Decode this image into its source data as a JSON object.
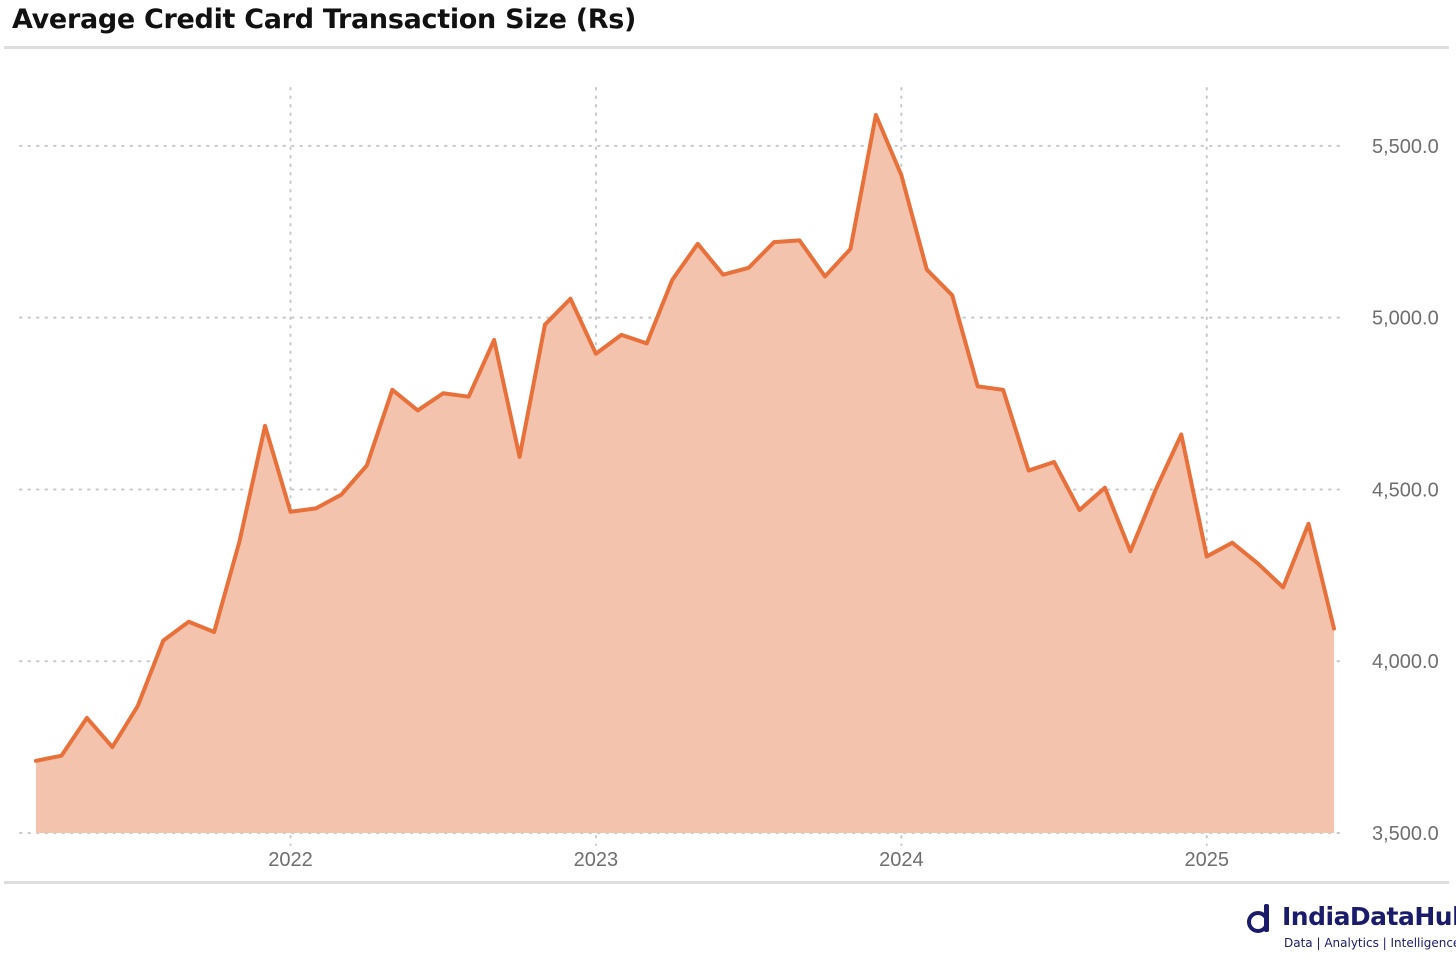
{
  "title": "Average Credit Card Transaction Size (Rs)",
  "colors": {
    "line": "#E8703A",
    "fill": "#F4C3AD",
    "grid": "#c8c8c8",
    "tick_text": "#6e6e6e",
    "brand": "#1b1b6b"
  },
  "brand": {
    "name": "IndiaDataHub",
    "tagline": "Data | Analytics | Intelligence",
    "logo_icon": "data-hub-logo-icon"
  },
  "chart_data": {
    "type": "area",
    "title": "Average Credit Card Transaction Size (Rs)",
    "xlabel": "",
    "ylabel": "",
    "x_start": "2021-03",
    "x_step": "month",
    "xlim": [
      "2021-03",
      "2025-04"
    ],
    "ylim": [
      3500,
      5750
    ],
    "y_axis_position": "right",
    "grid": true,
    "legend": "none",
    "x_ticks": [
      {
        "label": "2022",
        "at": "2022-01"
      },
      {
        "label": "2023",
        "at": "2023-01"
      },
      {
        "label": "2024",
        "at": "2024-01"
      },
      {
        "label": "2025",
        "at": "2025-01"
      }
    ],
    "y_ticks": [
      {
        "label": "3,500.0",
        "value": 3500
      },
      {
        "label": "4,000.0",
        "value": 4000
      },
      {
        "label": "4,500.0",
        "value": 4500
      },
      {
        "label": "5,000.0",
        "value": 5000
      },
      {
        "label": "5,500.0",
        "value": 5500
      }
    ],
    "series": [
      {
        "values": [
          3710,
          3725,
          3835,
          3750,
          3870,
          4060,
          4115,
          4085,
          4350,
          4685,
          4435,
          4445,
          4485,
          4570,
          4790,
          4730,
          4780,
          4770,
          4935,
          4595,
          4980,
          5055,
          4895,
          4950,
          4925,
          5110,
          5215,
          5125,
          5145,
          5220,
          5225,
          5120,
          5200,
          5590,
          5415,
          5140,
          5065,
          4800,
          4790,
          4555,
          4580,
          4440,
          4505,
          4320,
          4500,
          4660,
          4305,
          4345,
          4285,
          4215,
          4400,
          4095
        ]
      }
    ]
  }
}
